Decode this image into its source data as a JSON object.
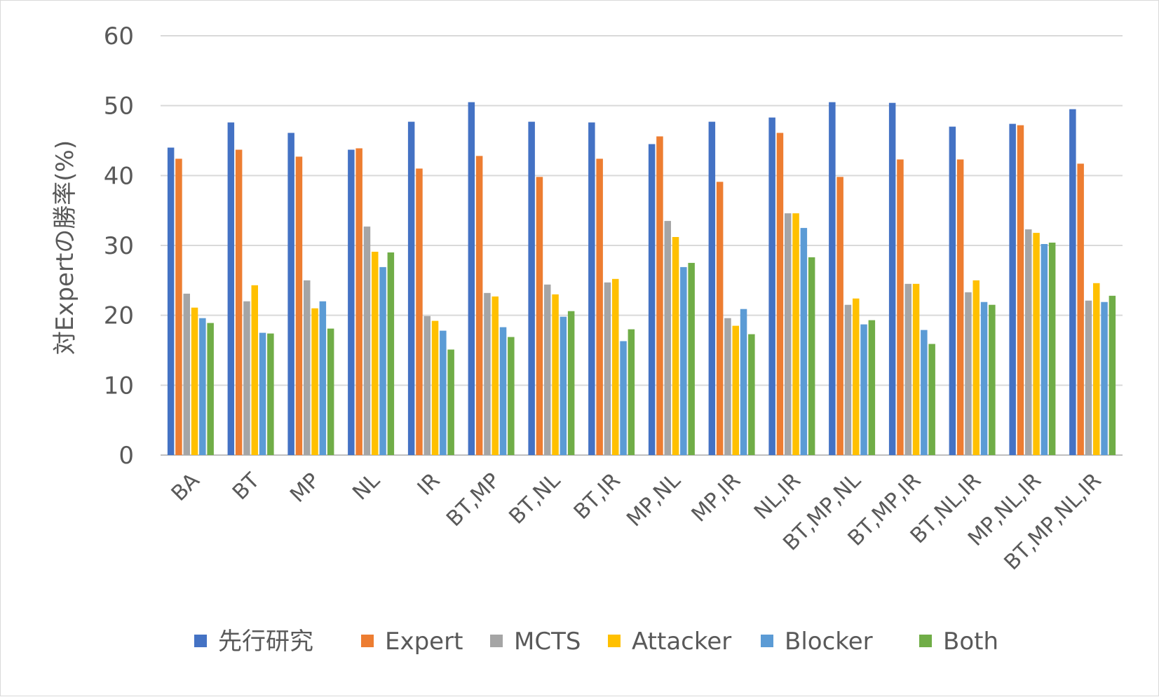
{
  "chart_data": {
    "type": "bar",
    "title": "",
    "xlabel": "",
    "ylabel": "対Expertの勝率(%)",
    "ylim": [
      0,
      60
    ],
    "yticks": [
      0,
      10,
      20,
      30,
      40,
      50,
      60
    ],
    "grid": true,
    "legend_position": "bottom",
    "categories": [
      "BA",
      "BT",
      "MP",
      "NL",
      "IR",
      "BT,MP",
      "BT,NL",
      "BT,IR",
      "MP,NL",
      "MP,IR",
      "NL,IR",
      "BT,MP,NL",
      "BT,MP,IR",
      "BT,NL,IR",
      "MP,NL,IR",
      "BT,MP,NL,IR"
    ],
    "series": [
      {
        "name": "先行研究",
        "color": "#4472c4",
        "values": [
          44.0,
          47.6,
          46.1,
          43.7,
          47.7,
          50.5,
          47.7,
          47.6,
          44.5,
          47.7,
          48.3,
          50.5,
          50.4,
          47.0,
          47.4,
          49.5
        ]
      },
      {
        "name": "Expert",
        "color": "#ed7d31",
        "values": [
          42.4,
          43.7,
          42.7,
          43.9,
          41.0,
          42.8,
          39.8,
          42.4,
          45.6,
          39.1,
          46.1,
          39.8,
          42.3,
          42.3,
          47.2,
          41.7
        ]
      },
      {
        "name": "MCTS",
        "color": "#a5a5a5",
        "values": [
          23.1,
          22.0,
          25.0,
          32.7,
          19.9,
          23.2,
          24.4,
          24.7,
          33.5,
          19.6,
          34.6,
          21.5,
          24.5,
          23.3,
          32.3,
          22.1
        ]
      },
      {
        "name": "Attacker",
        "color": "#ffc000",
        "values": [
          21.1,
          24.3,
          21.0,
          29.1,
          19.2,
          22.7,
          23.0,
          25.2,
          31.2,
          18.5,
          34.6,
          22.4,
          24.5,
          25.0,
          31.8,
          24.6
        ]
      },
      {
        "name": "Blocker",
        "color": "#5b9bd5",
        "values": [
          19.6,
          17.5,
          22.0,
          26.9,
          17.8,
          18.3,
          19.8,
          16.3,
          26.9,
          20.9,
          32.5,
          18.7,
          17.9,
          21.9,
          30.2,
          21.9
        ]
      },
      {
        "name": "Both",
        "color": "#70ad47",
        "values": [
          18.9,
          17.4,
          18.1,
          29.0,
          15.1,
          16.9,
          20.6,
          18.0,
          27.5,
          17.3,
          28.3,
          19.3,
          15.9,
          21.5,
          30.4,
          22.8
        ]
      }
    ]
  }
}
